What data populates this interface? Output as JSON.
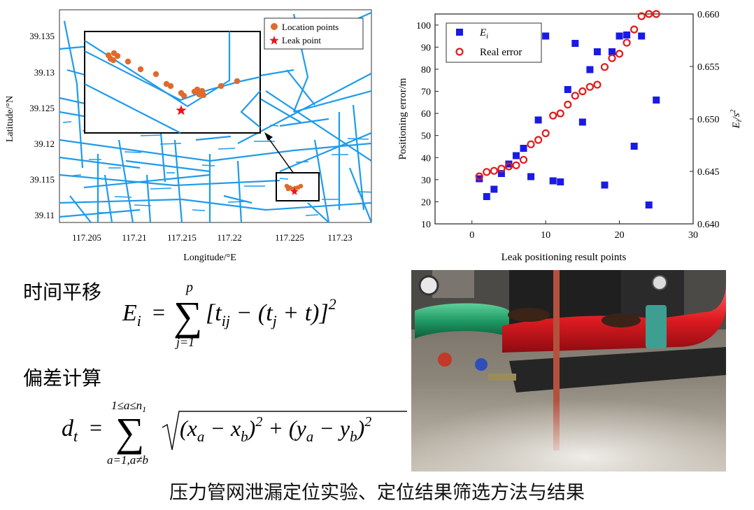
{
  "map": {
    "xlabel": "Longitude/°E",
    "ylabel": "Latitude/°N",
    "xticks": [
      "117.205",
      "117.21",
      "117.215",
      "117.22",
      "117.225",
      "117.23"
    ],
    "yticks": [
      "39.135",
      "39.13",
      "39.125",
      "39.12",
      "39.115",
      "39.11"
    ],
    "legend": {
      "location_label": "Location points",
      "leak_label": "Leak point"
    },
    "colors": {
      "pipe": "#1f9bea",
      "location": "#e06a2c",
      "leak": "#e8141d"
    }
  },
  "chart_data": {
    "type": "scatter",
    "xlabel": "Leak positioning result points",
    "ylabel": "Positioning error/m",
    "y2label": "E_i /s^2",
    "xlim": [
      -5,
      30
    ],
    "ylim": [
      10,
      105
    ],
    "y2lim": [
      0.64,
      0.66
    ],
    "xticks": [
      "0",
      "10",
      "20",
      "30"
    ],
    "yticks": [
      "10",
      "20",
      "30",
      "40",
      "50",
      "60",
      "70",
      "80",
      "90",
      "100"
    ],
    "y2ticks": [
      "0.640",
      "0.645",
      "0.650",
      "0.655",
      "0.660"
    ],
    "legend_position": "top-left",
    "series": [
      {
        "name": "E_i",
        "legend_symbol": "E",
        "legend_subscript": "i",
        "marker": "square",
        "color": "#1a1ae6",
        "axis": "right",
        "x": [
          1,
          2,
          3,
          4,
          5,
          6,
          7,
          8,
          9,
          10,
          11,
          12,
          13,
          14,
          15,
          16,
          17,
          18,
          19,
          20,
          21,
          22,
          23,
          24,
          25
        ],
        "y": [
          0.6443,
          0.6426,
          0.6433,
          0.6448,
          0.6457,
          0.6465,
          0.6472,
          0.6445,
          0.6499,
          0.6579,
          0.6441,
          0.644,
          0.6528,
          0.6572,
          0.6497,
          0.6547,
          0.6564,
          0.6437,
          0.6564,
          0.6579,
          0.658,
          0.6474,
          0.6579,
          0.6418,
          0.6518
        ]
      },
      {
        "name": "Real error",
        "legend_symbol": "Real error",
        "marker": "circle-open",
        "color": "#e11a1a",
        "axis": "left",
        "x": [
          1,
          2,
          3,
          4,
          5,
          6,
          7,
          8,
          9,
          10,
          11,
          12,
          13,
          14,
          15,
          16,
          17,
          18,
          19,
          20,
          21,
          22,
          23,
          24,
          25
        ],
        "y": [
          31.5,
          33.5,
          34,
          35,
          36,
          36.5,
          39,
          46,
          48,
          51,
          59,
          60,
          64,
          68,
          70,
          72,
          73,
          81,
          85,
          87,
          92,
          98,
          104,
          105,
          106
        ]
      }
    ]
  },
  "formulas": {
    "time_label": "时间平移",
    "deviation_label": "偏差计算",
    "ei_lhs": "E",
    "ei_lhs_sub": "i",
    "ei_upper": "p",
    "ei_lower": "j=1",
    "ei_body_1": "[t",
    "ei_body_1_sub": "ij",
    "ei_body_2": " − (t",
    "ei_body_2_sub": "j",
    "ei_body_3": " + t)]",
    "ei_exp": "2",
    "dt_lhs": "d",
    "dt_lhs_sub": "t",
    "dt_upper": "1≤a≤n",
    "dt_upper_sub": "1",
    "dt_lower": "a=1,a≠b",
    "dt_body_1": "(x",
    "dt_body_1_sub": "a",
    "dt_body_2": " − x",
    "dt_body_2_sub": "b",
    "dt_body_3": ")",
    "dt_body_3_exp": "2",
    "dt_body_4": " + (y",
    "dt_body_4_sub": "a",
    "dt_body_5": " − y",
    "dt_body_5_sub": "b",
    "dt_body_6": ")",
    "dt_body_6_exp": "2"
  },
  "caption": "压力管网泄漏定位实验、定位结果筛选方法与结果"
}
